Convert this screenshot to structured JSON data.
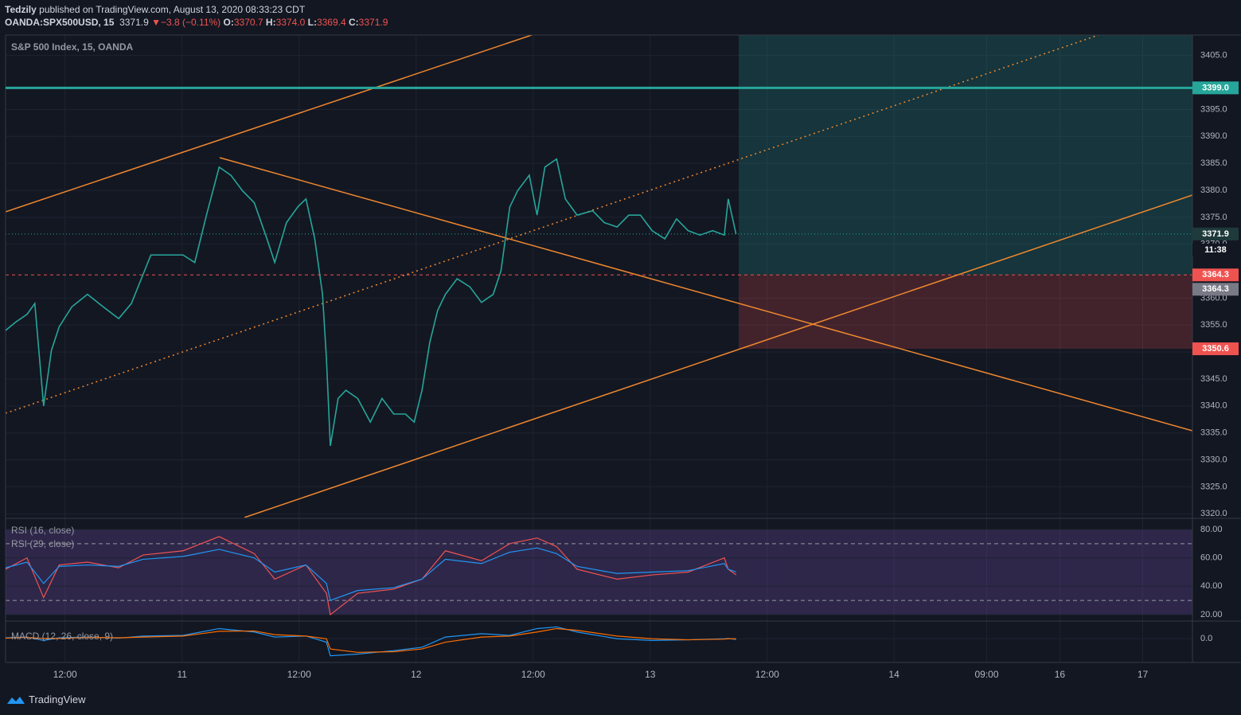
{
  "header": {
    "author": "Tedzily",
    "published": "published on TradingView.com, August 13, 2020 08:33:23 CDT",
    "symbol": "OANDA:SPX500USD, 15",
    "last": "3371.9",
    "arrow": "▼",
    "change": "−3.8 (−0.11%)",
    "o_label": "O:",
    "o": "3370.7",
    "h_label": "H:",
    "h": "3374.0",
    "l_label": "L:",
    "l": "3369.4",
    "c_label": "C:",
    "c": "3371.9"
  },
  "footer": {
    "brand": "TradingView"
  },
  "chart_data": [
    {
      "type": "line",
      "title": "S&P 500 Index, 15, OANDA",
      "grid": true,
      "x": [
        5.9,
        6.9,
        8.1,
        8.9,
        9.8,
        10.6,
        11.4,
        12.7,
        14.3,
        15.9,
        17.5,
        18.8,
        20.0,
        20.8,
        22.4,
        24.1,
        25.3,
        26.5,
        27.8,
        29.0,
        30.2,
        31.4,
        32.7,
        33.5,
        34.7,
        35.9,
        36.7,
        37.6,
        38.4,
        38.8,
        39.2,
        40.0,
        40.8,
        42.0,
        43.3,
        44.5,
        45.7,
        46.9,
        47.8,
        48.6,
        49.4,
        50.2,
        51.0,
        52.2,
        53.5,
        54.7,
        55.9,
        56.7,
        57.6,
        58.4,
        59.6,
        60.4,
        61.2,
        62.4,
        63.3,
        64.5,
        66.1,
        67.3,
        68.6,
        69.8,
        71.0,
        72.2,
        73.5,
        74.7,
        75.9,
        77.1,
        78.4,
        79.6,
        80.0,
        80.8
      ],
      "series": [
        {
          "color": "#26a69a",
          "values": [
            3354.0,
            3355.5,
            3357,
            3359,
            3340,
            3350.3,
            3354.7,
            3358.4,
            3360.7,
            3358.4,
            3356.2,
            3359,
            3364.4,
            3368,
            3368,
            3368,
            3366.6,
            3375.4,
            3384.3,
            3382.8,
            3379.9,
            3377.7,
            3371,
            3366.6,
            3374,
            3377,
            3378.4,
            3371,
            3360.7,
            3348.8,
            3332.6,
            3341.4,
            3342.9,
            3341.4,
            3337,
            3341.4,
            3338.5,
            3338.5,
            3337,
            3342.9,
            3351.8,
            3357.7,
            3360.7,
            3363.6,
            3362.1,
            3359.2,
            3360.7,
            3365.1,
            3376.9,
            3379.9,
            3382.8,
            3375.4,
            3384.3,
            3385.8,
            3378.4,
            3375.4,
            3376.2,
            3374,
            3373.2,
            3375.4,
            3375.4,
            3372.5,
            3371,
            3374.7,
            3372.5,
            3371.7,
            3372.5,
            3371.7,
            3378.4,
            3371.9
          ]
        }
      ],
      "xlim": [
        5.9,
        127.6
      ],
      "xticks": [
        {
          "value": 12,
          "label": "12:00"
        },
        {
          "value": 24,
          "label": "11"
        },
        {
          "value": 36,
          "label": "12:00"
        },
        {
          "value": 48,
          "label": "12"
        },
        {
          "value": 60,
          "label": "12:00"
        },
        {
          "value": 72,
          "label": "13"
        },
        {
          "value": 84,
          "label": "12:00"
        },
        {
          "value": 97,
          "label": "14"
        },
        {
          "value": 106.5,
          "label": "09:00"
        },
        {
          "value": 114,
          "label": "16"
        },
        {
          "value": 122.5,
          "label": "17"
        }
      ],
      "ylim": [
        3319.3,
        3408.8
      ],
      "yticks": [
        {
          "value": 3320,
          "label": "3320.0"
        },
        {
          "value": 3325,
          "label": "3325.0"
        },
        {
          "value": 3330,
          "label": "3330.0"
        },
        {
          "value": 3335,
          "label": "3335.0"
        },
        {
          "value": 3340,
          "label": "3340.0"
        },
        {
          "value": 3345,
          "label": "3345.0"
        },
        {
          "value": 3350,
          "label": "3350.0"
        },
        {
          "value": 3355,
          "label": "3355.0"
        },
        {
          "value": 3360,
          "label": "3360.0"
        },
        {
          "value": 3370,
          "label": "3370.0"
        },
        {
          "value": 3375,
          "label": "3375.0"
        },
        {
          "value": 3380,
          "label": "3380.0"
        },
        {
          "value": 3385,
          "label": "3385.0"
        },
        {
          "value": 3390,
          "label": "3390.0"
        },
        {
          "value": 3395,
          "label": "3395.0"
        },
        {
          "value": 3405,
          "label": "3405.0"
        }
      ],
      "price_labels": [
        {
          "value": 3399.0,
          "label": "3399.0",
          "color": "#26a69a"
        },
        {
          "value": 3371.9,
          "label": "3371.9",
          "color": "#1e3a3a"
        },
        {
          "value": 3364.3,
          "label": "3364.3",
          "color": "#ef5350"
        },
        {
          "value": 3350.6,
          "label": "3350.6",
          "color": "#ef5350"
        }
      ],
      "entry_label": {
        "value": 3364.3,
        "label": "3364.3",
        "color": "#787b86"
      },
      "countdown": "11:38"
    },
    {
      "type": "line",
      "series": [
        {
          "name": "RSI (16, close)",
          "color": "#ef5350",
          "values": [
            52,
            60,
            32,
            55,
            57,
            53,
            62,
            65,
            75,
            63,
            45,
            55,
            35,
            20,
            35,
            38,
            45,
            65,
            58,
            70,
            74,
            68,
            52,
            45,
            48,
            50,
            60,
            52,
            48
          ]
        },
        {
          "name": "RSI (29, close)",
          "color": "#2196f3",
          "values": [
            53,
            57,
            42,
            54,
            55,
            54,
            59,
            61,
            66,
            60,
            50,
            55,
            42,
            30,
            37,
            39,
            45,
            59,
            56,
            64,
            67,
            63,
            54,
            49,
            50,
            51,
            56,
            52,
            50
          ]
        }
      ],
      "x": [
        5.9,
        8.1,
        9.8,
        11.4,
        14.3,
        17.5,
        20.0,
        24.1,
        27.8,
        31.4,
        33.5,
        36.7,
        38.8,
        39.2,
        42.0,
        45.7,
        48.6,
        51.0,
        54.7,
        57.6,
        60.4,
        62.4,
        64.5,
        68.6,
        72.2,
        75.9,
        79.6,
        80.0,
        80.8
      ],
      "ylim": [
        16.6,
        87.3
      ],
      "yticks": [
        {
          "value": 20,
          "label": "20.00"
        },
        {
          "value": 40,
          "label": "40.00"
        },
        {
          "value": 60,
          "label": "60.00"
        },
        {
          "value": 80,
          "label": "80.00"
        }
      ],
      "band_levels": [
        80,
        70,
        30,
        20
      ]
    },
    {
      "type": "line",
      "title": "MACD (12, 26, close, 9)",
      "series": [
        {
          "color": "#2196f3",
          "values": [
            0.3,
            0.5,
            -0.5,
            0.3,
            0.5,
            0.2,
            0.8,
            1,
            3,
            2,
            0.5,
            0.8,
            -1,
            -5,
            -4.5,
            -3.5,
            -2.5,
            0.5,
            1.5,
            1,
            3,
            3.5,
            2,
            0,
            -0.5,
            -0.3,
            0,
            0.1,
            -0.2
          ]
        },
        {
          "color": "#ff6d00",
          "values": [
            0.2,
            0.4,
            0.1,
            0.1,
            0.4,
            0.3,
            0.5,
            0.8,
            2.2,
            2.3,
            1.2,
            0.8,
            0,
            -3,
            -4,
            -3.8,
            -3,
            -1,
            0.5,
            0.8,
            2,
            3,
            2.5,
            0.8,
            0,
            -0.3,
            -0.1,
            0,
            0
          ]
        }
      ],
      "x": [
        5.9,
        8.1,
        9.8,
        11.4,
        14.3,
        17.5,
        20.0,
        24.1,
        27.8,
        31.4,
        33.5,
        36.7,
        38.8,
        39.2,
        42.0,
        45.7,
        48.6,
        51.0,
        54.7,
        57.6,
        60.4,
        62.4,
        64.5,
        68.6,
        72.2,
        75.9,
        79.6,
        80.0,
        80.8
      ],
      "ylim": [
        -6.5,
        4.75
      ],
      "yticks": [
        {
          "value": 0,
          "label": "0.0"
        }
      ]
    }
  ]
}
